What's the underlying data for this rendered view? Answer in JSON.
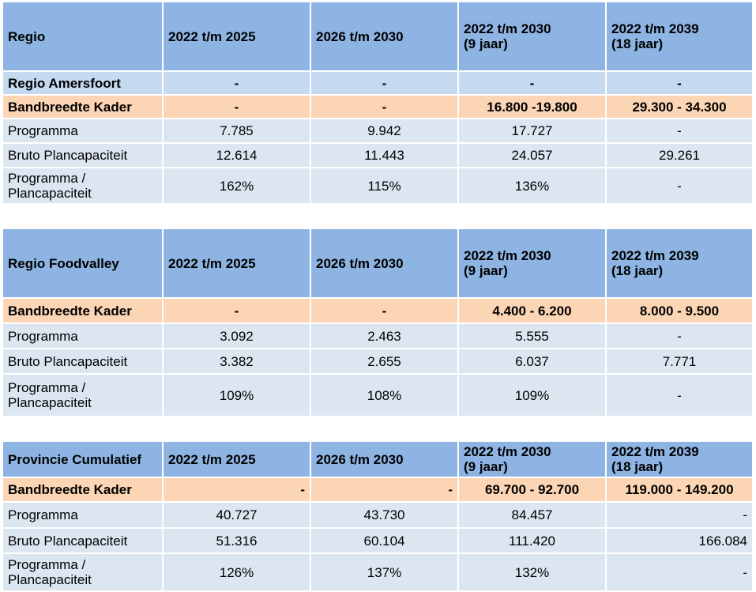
{
  "tables": [
    {
      "header": {
        "region": "Regio",
        "col1": "2022 t/m 2025",
        "col2": "2026 t/m 2030",
        "col3_line1": "2022 t/m 2030",
        "col3_line2": "(9 jaar)",
        "col4_line1": "2022 t/m 2039",
        "col4_line2": "(18 jaar)"
      },
      "subheader": {
        "label": "Regio Amersfoort",
        "col1": "-",
        "col2": "-",
        "col3": "-",
        "col4": "-"
      },
      "kader": {
        "label": "Bandbreedte Kader",
        "col1": "-",
        "col2": "-",
        "col3": "16.800 -19.800",
        "col4": "29.300 - 34.300"
      },
      "programma": {
        "label": "Programma",
        "col1": "7.785",
        "col2": "9.942",
        "col3": "17.727",
        "col4": "-"
      },
      "bruto": {
        "label": "Bruto Plancapaciteit",
        "col1": "12.614",
        "col2": "11.443",
        "col3": "24.057",
        "col4": "29.261"
      },
      "ratio": {
        "label_line1": "Programma /",
        "label_line2": "Plancapaciteit",
        "col1": "162%",
        "col2": "115%",
        "col3": "136%",
        "col4": "-"
      }
    },
    {
      "header": {
        "region": "Regio Foodvalley",
        "col1": "2022 t/m 2025",
        "col2": "2026 t/m 2030",
        "col3_line1": "2022 t/m 2030",
        "col3_line2": "(9 jaar)",
        "col4_line1": "2022 t/m 2039",
        "col4_line2": "(18 jaar)"
      },
      "kader": {
        "label": "Bandbreedte Kader",
        "col1": "-",
        "col2": "-",
        "col3": "4.400 - 6.200",
        "col4": "8.000 - 9.500"
      },
      "programma": {
        "label": "Programma",
        "col1": "3.092",
        "col2": "2.463",
        "col3": "5.555",
        "col4": "-"
      },
      "bruto": {
        "label": "Bruto Plancapaciteit",
        "col1": "3.382",
        "col2": "2.655",
        "col3": "6.037",
        "col4": "7.771"
      },
      "ratio": {
        "label_line1": "Programma /",
        "label_line2": "Plancapaciteit",
        "col1": "109%",
        "col2": "108%",
        "col3": "109%",
        "col4": "-"
      }
    },
    {
      "header": {
        "region": "Provincie Cumulatief",
        "col1": "2022 t/m 2025",
        "col2": "2026 t/m 2030",
        "col3_line1": "2022 t/m 2030",
        "col3_line2": "(9 jaar)",
        "col4_line1": "2022 t/m 2039",
        "col4_line2": "(18 jaar)"
      },
      "kader": {
        "label": "Bandbreedte Kader",
        "col1": "-",
        "col2": "-",
        "col3": "69.700 - 92.700",
        "col4": "119.000 - 149.200"
      },
      "programma": {
        "label": "Programma",
        "col1": "40.727",
        "col2": "43.730",
        "col3": "84.457",
        "col4": "-"
      },
      "bruto": {
        "label": "Bruto Plancapaciteit",
        "col1": "51.316",
        "col2": "60.104",
        "col3": "111.420",
        "col4": "166.084"
      },
      "ratio": {
        "label_line1": "Programma /",
        "label_line2": "Plancapaciteit",
        "col1": "126%",
        "col2": "137%",
        "col3": "132%",
        "col4": "-"
      }
    }
  ]
}
